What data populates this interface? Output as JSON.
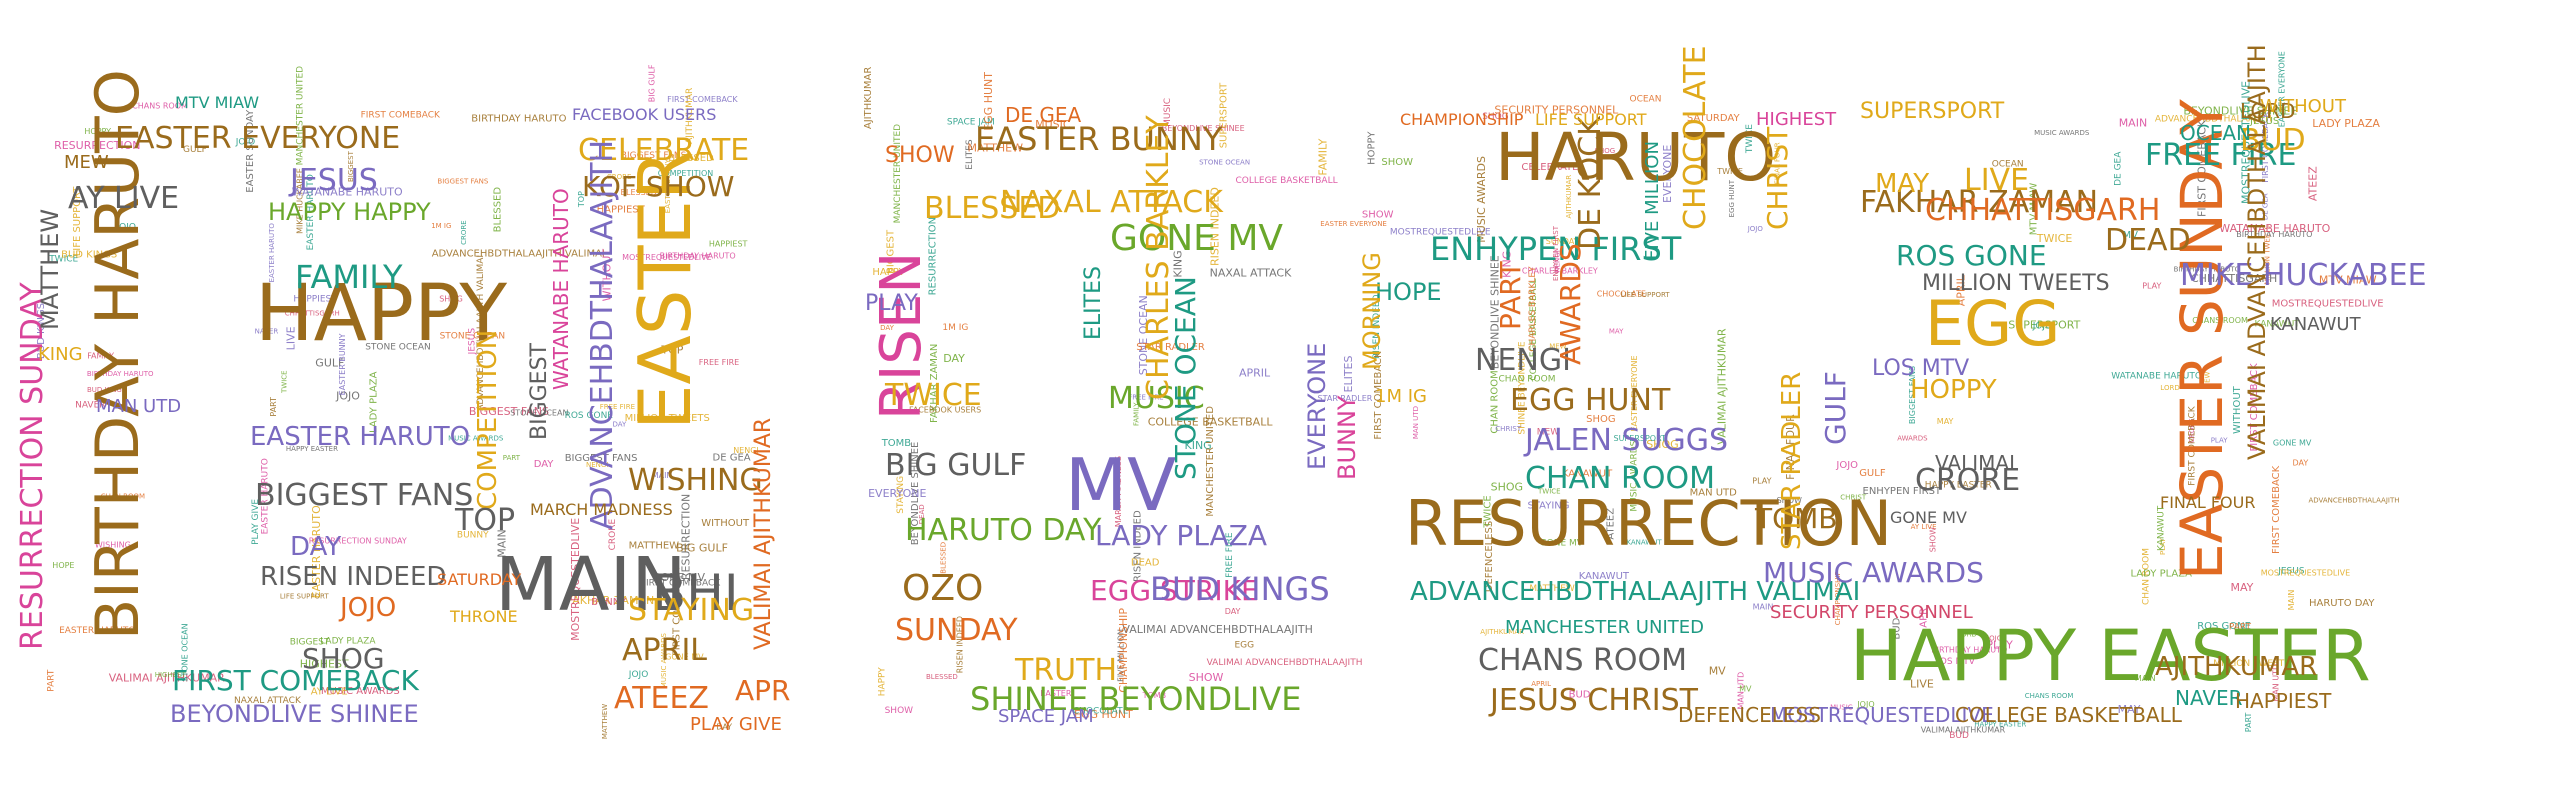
{
  "colors": {
    "brown": "#9a6b1c",
    "gold": "#e0a91a",
    "orange": "#e06a22",
    "green": "#6aa72b",
    "teal": "#1e9a83",
    "purple": "#7a6ac0",
    "gray": "#5f5f5f",
    "red": "#d2476a",
    "pink": "#d9449a"
  },
  "words": [
    "BIRTHDAY HARUTO",
    "RESURRECTION SUNDAY",
    "MATTHEW",
    "HAPPY",
    "EASTER EVERYONE",
    "MTV MIAW",
    "AY LIVE",
    "JESUS",
    "HAPPY HAPPY",
    "FAMILY",
    "EASTER HARUTO",
    "BIGGEST FANS",
    "DAY",
    "RISEN INDEED",
    "SHOG",
    "JOJO",
    "FIRST COMEBACK",
    "BEYONDLIVE SHINEE",
    "KING",
    "MEW",
    "MAN UTD",
    "MAIN",
    "BHI",
    "EASTER",
    "CELEBRATE",
    "KOF SHOW",
    "ADVANCEHBDTHALAAJITH",
    "WISHING",
    "COMPETITION",
    "BIGGEST",
    "TOP",
    "STAYING",
    "APRIL",
    "ATEEZ",
    "VALIMAI AJITHKUMAR",
    "WATANABE HARUTO",
    "FACEBOOK USERS",
    "MARCH MADNESS",
    "THRONE",
    "SATURDAY",
    "APR",
    "PLAY GIVE",
    "RISEN",
    "EASTER BUNNY",
    "NAXAL ATTACK",
    "GONE MV",
    "MUSIC",
    "CHARLES BARKLEY",
    "MV",
    "HARUTO DAY",
    "BIG GULF",
    "OZO",
    "SUNDAY",
    "SHINEE BEYONDLIVE",
    "TRUTH",
    "LADY PLAZA",
    "EGG STRIKE",
    "BUD KINGS",
    "STONE OCEAN",
    "BLESSED",
    "SHOW",
    "ELITES",
    "TWICE",
    "PLAY",
    "DE GEA",
    "SPACE JAM",
    "HARUTO",
    "ENHYPEN FIRST",
    "DE KOCK",
    "HOPE",
    "MORNING",
    "RESURRECTION",
    "ADVANCEHBDTHALAAJITH VALIMAI",
    "NENGI",
    "EGG HUNT",
    "JALEN SUGGS",
    "CHAN ROOM",
    "CHANS ROOM",
    "JESUS CHRIST",
    "MANCHESTER UNITED",
    "BUNNY",
    "EVERYONE",
    "CHAMPIONSHIP",
    "LIFE SUPPORT",
    "AWARDS",
    "PART",
    "1M IG",
    "FAKHAR ZAMAN",
    "SUPERSPORT",
    "CHOCOLATE",
    "CHRIST",
    "CHHATTISGARH",
    "ROS GONE",
    "EGG",
    "HOPPY",
    "GULF",
    "CRORE",
    "TOMB",
    "STAR RADLER",
    "MUSIC AWARDS",
    "HAPPY EASTER",
    "MOSTREQUESTEDLIVE",
    "COLLEGE BASKETBALL",
    "DEFENCELESS",
    "MAY",
    "LIVE",
    "MILLION TWEETS",
    "FIVE MILLION",
    "VALIMAI",
    "SECURITY PERSONNEL",
    "LOS MTV",
    "GONE MV",
    "HIGHEST",
    "EASTER SUNDAY",
    "MIKE HUCKABEE",
    "FREE FIRE",
    "DEAD",
    "BUD",
    "OCEAN",
    "LORD",
    "WITHOUT",
    "NAVER",
    "HAPPIEST",
    "AJITHKUMAR",
    "VALIMAI ADVANCEHBDTHALAAJITH",
    "KANAWUT",
    "FINAL FOUR"
  ]
}
